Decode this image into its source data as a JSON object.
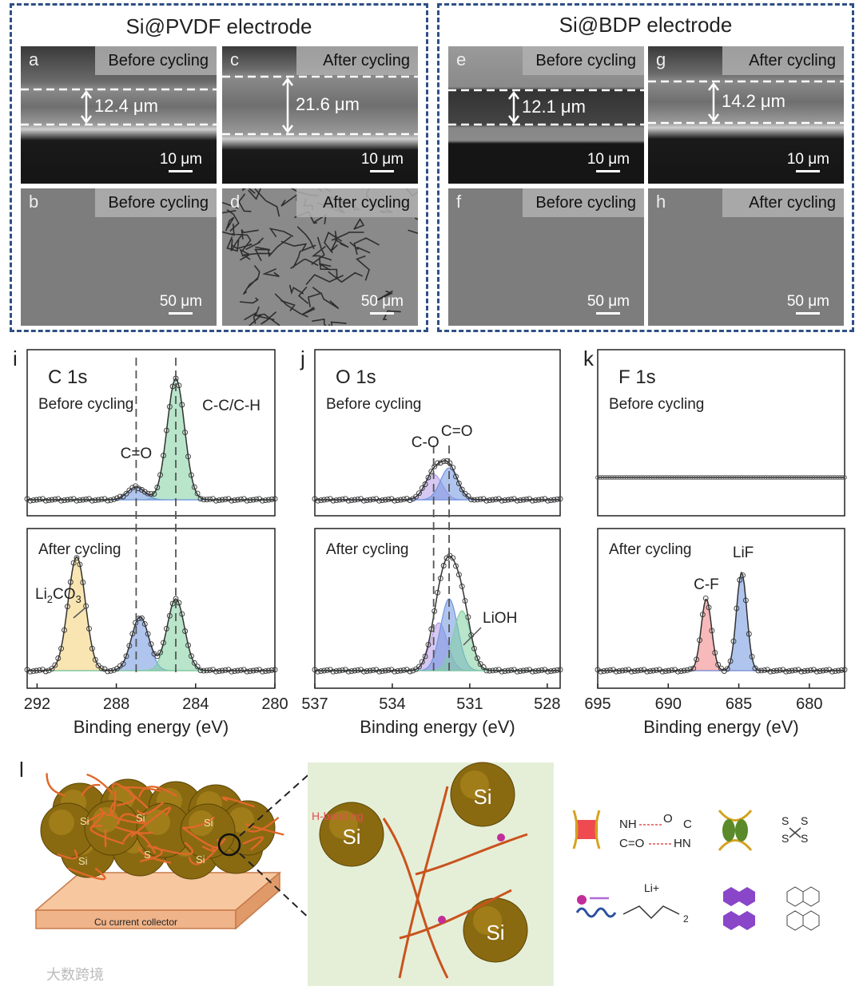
{
  "groups": {
    "pvdf_title": "Si@PVDF electrode",
    "bdp_title": "Si@BDP electrode"
  },
  "sem_panels": [
    {
      "id": "a",
      "label": "a",
      "tag": "Before cycling",
      "scale": "10 μm",
      "thickness": "12.4 μm"
    },
    {
      "id": "b",
      "label": "b",
      "tag": "Before cycling",
      "scale": "50 μm"
    },
    {
      "id": "c",
      "label": "c",
      "tag": "After cycling",
      "scale": "10 μm",
      "thickness": "21.6 μm"
    },
    {
      "id": "d",
      "label": "d",
      "tag": "After cycling",
      "scale": "50 μm"
    },
    {
      "id": "e",
      "label": "e",
      "tag": "Before cycling",
      "scale": "10 μm",
      "thickness": "12.1 μm"
    },
    {
      "id": "f",
      "label": "f",
      "tag": "Before cycling",
      "scale": "50 μm"
    },
    {
      "id": "g",
      "label": "g",
      "tag": "After cycling",
      "scale": "10 μm",
      "thickness": "14.2 μm"
    },
    {
      "id": "h",
      "label": "h",
      "tag": "After cycling",
      "scale": "50 μm"
    }
  ],
  "chart_data": [
    {
      "type": "line",
      "panel": "i",
      "title": "C 1s",
      "xlabel": "Binding energy (eV)",
      "xlim": [
        292.5,
        280
      ],
      "xticks": [
        "292",
        "288",
        "284",
        "280"
      ],
      "top_label": "Before cycling",
      "bottom_label": "After cycling",
      "top_annotations": [
        "C=O",
        "C-C/C-H"
      ],
      "bottom_annotations": [
        "Li2CO3"
      ],
      "series": [
        {
          "name": "C-C/C-H (before)",
          "center": 285.0,
          "height": 0.95
        },
        {
          "name": "C=O (before)",
          "center": 287.0,
          "height": 0.1
        },
        {
          "name": "Li2CO3 (after)",
          "center": 290.0,
          "height": 0.95
        },
        {
          "name": "C=O (after)",
          "center": 286.8,
          "height": 0.45
        },
        {
          "name": "C-C/C-H (after)",
          "center": 285.0,
          "height": 0.6
        }
      ]
    },
    {
      "type": "line",
      "panel": "j",
      "title": "O 1s",
      "xlabel": "Binding energy (eV)",
      "xlim": [
        537,
        527.5
      ],
      "xticks": [
        "537",
        "534",
        "531",
        "528"
      ],
      "top_label": "Before cycling",
      "bottom_label": "After cycling",
      "top_annotations": [
        "C-O",
        "C=O"
      ],
      "bottom_annotations": [
        "LiOH"
      ],
      "series": [
        {
          "name": "C-O (before)",
          "center": 532.4,
          "height": 0.2
        },
        {
          "name": "C=O (before)",
          "center": 531.8,
          "height": 0.25
        },
        {
          "name": "C-O (after)",
          "center": 532.2,
          "height": 0.4
        },
        {
          "name": "C=O (after)",
          "center": 531.8,
          "height": 0.6
        },
        {
          "name": "LiOH (after)",
          "center": 531.3,
          "height": 0.5
        }
      ]
    },
    {
      "type": "line",
      "panel": "k",
      "title": "F 1s",
      "xlabel": "Binding energy (eV)",
      "xlim": [
        695,
        677.5
      ],
      "xticks": [
        "695",
        "690",
        "685",
        "680"
      ],
      "top_label": "Before cycling",
      "bottom_label": "After cycling",
      "top_annotations": [],
      "bottom_annotations": [
        "C-F",
        "LiF"
      ],
      "series": [
        {
          "name": "C-F (after)",
          "center": 687.3,
          "height": 0.6
        },
        {
          "name": "LiF (after)",
          "center": 684.8,
          "height": 0.82
        }
      ]
    }
  ],
  "schematic": {
    "panel_label": "l",
    "collector_label": "Cu current collector",
    "si_label": "Si",
    "hbond_label": "H-bonding",
    "small_si_labels": [
      "Si",
      "Si",
      "Si",
      "S",
      "Si",
      "Si"
    ],
    "li_label": "Li+",
    "legend_texts": [
      "NH",
      "O",
      "C",
      "C=O",
      "HN",
      "S",
      "S",
      "S",
      "S",
      "2"
    ]
  },
  "watermark": "大数跨境",
  "colors": {
    "box": "#2f4f86",
    "green": "#7fd0a0",
    "blue": "#6f95e0",
    "purple": "#b49be6",
    "yellow": "#f3cf72",
    "red": "#f08080"
  }
}
